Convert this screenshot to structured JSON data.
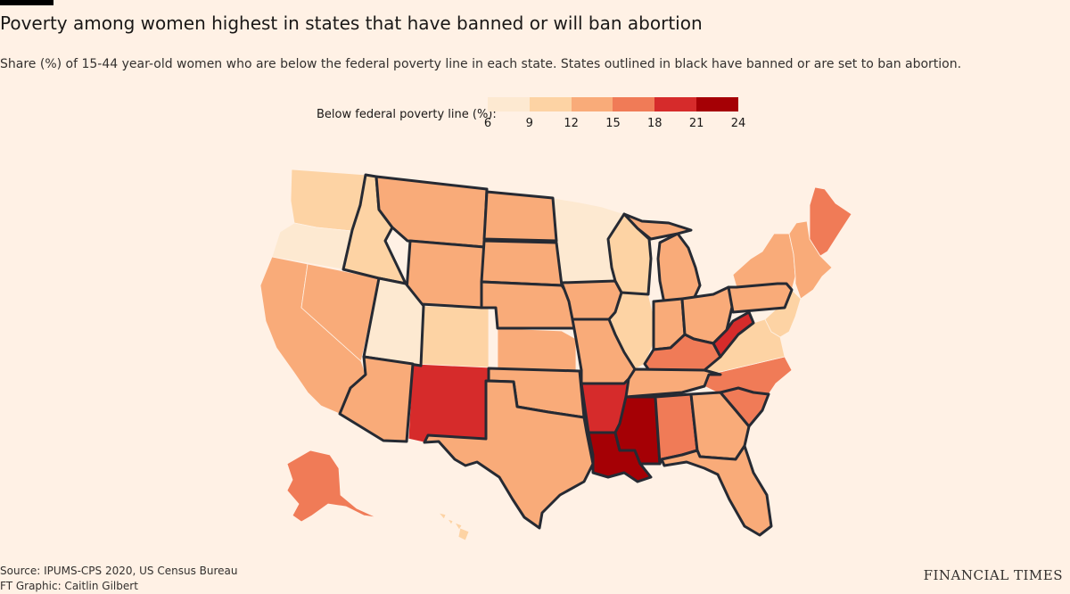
{
  "header": {
    "title": "Poverty among women highest in states that have banned or will ban abortion",
    "subtitle": "Share (%) of 15-44 year-old women who are below the federal poverty line in each state. States outlined in black have banned or are set to ban abortion."
  },
  "legend": {
    "label": "Below federal poverty line (%):",
    "ticks": [
      "6",
      "9",
      "12",
      "15",
      "18",
      "21",
      "24"
    ],
    "colors": [
      "#fde9d1",
      "#fdd3a4",
      "#f9ab79",
      "#f07b57",
      "#d62b2b",
      "#a50005"
    ]
  },
  "map": {
    "states": [
      {
        "code": "WA",
        "bin": 1,
        "banned": false
      },
      {
        "code": "OR",
        "bin": 0,
        "banned": false
      },
      {
        "code": "CA",
        "bin": 2,
        "banned": false
      },
      {
        "code": "NV",
        "bin": 2,
        "banned": false
      },
      {
        "code": "ID",
        "bin": 1,
        "banned": true
      },
      {
        "code": "MT",
        "bin": 2,
        "banned": true
      },
      {
        "code": "WY",
        "bin": 2,
        "banned": true
      },
      {
        "code": "UT",
        "bin": 0,
        "banned": true
      },
      {
        "code": "AZ",
        "bin": 2,
        "banned": true
      },
      {
        "code": "CO",
        "bin": 1,
        "banned": false
      },
      {
        "code": "NM",
        "bin": 4,
        "banned": false
      },
      {
        "code": "ND",
        "bin": 2,
        "banned": true
      },
      {
        "code": "SD",
        "bin": 2,
        "banned": true
      },
      {
        "code": "NE",
        "bin": 2,
        "banned": true
      },
      {
        "code": "KS",
        "bin": 2,
        "banned": false
      },
      {
        "code": "OK",
        "bin": 2,
        "banned": true
      },
      {
        "code": "TX",
        "bin": 2,
        "banned": true
      },
      {
        "code": "MN",
        "bin": 0,
        "banned": false
      },
      {
        "code": "IA",
        "bin": 2,
        "banned": true
      },
      {
        "code": "MO",
        "bin": 2,
        "banned": true
      },
      {
        "code": "AR",
        "bin": 4,
        "banned": true
      },
      {
        "code": "LA",
        "bin": 5,
        "banned": true
      },
      {
        "code": "WI",
        "bin": 1,
        "banned": true
      },
      {
        "code": "IL",
        "bin": 1,
        "banned": false
      },
      {
        "code": "MI",
        "bin": 2,
        "banned": true
      },
      {
        "code": "IN",
        "bin": 2,
        "banned": true
      },
      {
        "code": "OH",
        "bin": 2,
        "banned": true
      },
      {
        "code": "KY",
        "bin": 3,
        "banned": true
      },
      {
        "code": "TN",
        "bin": 2,
        "banned": true
      },
      {
        "code": "MS",
        "bin": 5,
        "banned": true
      },
      {
        "code": "AL",
        "bin": 3,
        "banned": true
      },
      {
        "code": "GA",
        "bin": 2,
        "banned": true
      },
      {
        "code": "FL",
        "bin": 2,
        "banned": true
      },
      {
        "code": "SC",
        "bin": 3,
        "banned": true
      },
      {
        "code": "NC",
        "bin": 3,
        "banned": false
      },
      {
        "code": "VA",
        "bin": 1,
        "banned": false
      },
      {
        "code": "WV",
        "bin": 4,
        "banned": true
      },
      {
        "code": "PA",
        "bin": 2,
        "banned": true
      },
      {
        "code": "NY",
        "bin": 2,
        "banned": false
      },
      {
        "code": "ME",
        "bin": 3,
        "banned": false
      },
      {
        "code": "AK",
        "bin": 3,
        "banned": false
      },
      {
        "code": "HI",
        "bin": 1,
        "banned": false
      }
    ]
  },
  "footer": {
    "source": "Source: IPUMS-CPS 2020, US Census Bureau",
    "credit": "FT Graphic: Caitlin Gilbert",
    "brand": "FINANCIAL TIMES"
  }
}
